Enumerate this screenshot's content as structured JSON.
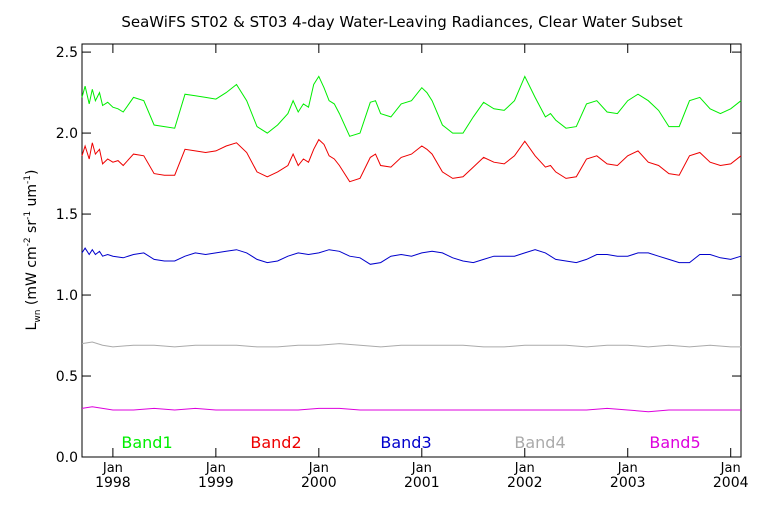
{
  "chart_data": {
    "type": "line",
    "title": "SeaWiFS ST02 & ST03 4-day Water-Leaving Radiances, Clear Water Subset",
    "ylabel_main": "L",
    "ylabel_sub": "wn",
    "ylabel_rest": " (mW cm",
    "ylabel_sup1": "-2",
    "ylabel_mid": " sr",
    "ylabel_sup2": "-1",
    "ylabel_mid2": " um",
    "ylabel_sup3": "-1",
    "ylabel_end": ")",
    "xlim": [
      1997.7,
      2004.1
    ],
    "ylim": [
      0.0,
      2.55
    ],
    "yticks": [
      {
        "value": 0.0,
        "label": "0.0"
      },
      {
        "value": 0.5,
        "label": "0.5"
      },
      {
        "value": 1.0,
        "label": "1.0"
      },
      {
        "value": 1.5,
        "label": "1.5"
      },
      {
        "value": 2.0,
        "label": "2.0"
      },
      {
        "value": 2.5,
        "label": "2.5"
      }
    ],
    "xticks": [
      {
        "value": 1998.0,
        "month": "Jan",
        "year": "1998"
      },
      {
        "value": 1999.0,
        "month": "Jan",
        "year": "1999"
      },
      {
        "value": 2000.0,
        "month": "Jan",
        "year": "2000"
      },
      {
        "value": 2001.0,
        "month": "Jan",
        "year": "2001"
      },
      {
        "value": 2002.0,
        "month": "Jan",
        "year": "2002"
      },
      {
        "value": 2003.0,
        "month": "Jan",
        "year": "2003"
      },
      {
        "value": 2004.0,
        "month": "Jan",
        "year": "2004"
      }
    ],
    "series": [
      {
        "name": "Band1",
        "color": "#00ee00",
        "x": [
          1997.7,
          1997.73,
          1997.77,
          1997.8,
          1997.83,
          1997.87,
          1997.9,
          1997.95,
          1998.0,
          1998.05,
          1998.1,
          1998.2,
          1998.3,
          1998.4,
          1998.5,
          1998.6,
          1998.7,
          1998.8,
          1998.9,
          1999.0,
          1999.1,
          1999.2,
          1999.3,
          1999.4,
          1999.5,
          1999.6,
          1999.7,
          1999.75,
          1999.8,
          1999.85,
          1999.9,
          1999.95,
          2000.0,
          2000.05,
          2000.1,
          2000.15,
          2000.2,
          2000.3,
          2000.4,
          2000.5,
          2000.55,
          2000.6,
          2000.7,
          2000.8,
          2000.9,
          2001.0,
          2001.05,
          2001.1,
          2001.2,
          2001.3,
          2001.4,
          2001.5,
          2001.6,
          2001.7,
          2001.8,
          2001.9,
          2002.0,
          2002.1,
          2002.2,
          2002.25,
          2002.3,
          2002.4,
          2002.5,
          2002.6,
          2002.7,
          2002.8,
          2002.9,
          2003.0,
          2003.1,
          2003.2,
          2003.3,
          2003.4,
          2003.5,
          2003.6,
          2003.7,
          2003.8,
          2003.9,
          2004.0,
          2004.1
        ],
        "y": [
          2.22,
          2.29,
          2.18,
          2.27,
          2.2,
          2.25,
          2.17,
          2.19,
          2.16,
          2.15,
          2.13,
          2.22,
          2.2,
          2.05,
          2.04,
          2.03,
          2.24,
          2.23,
          2.22,
          2.21,
          2.25,
          2.3,
          2.2,
          2.04,
          2.0,
          2.05,
          2.12,
          2.2,
          2.13,
          2.18,
          2.16,
          2.3,
          2.35,
          2.28,
          2.2,
          2.18,
          2.12,
          1.98,
          2.0,
          2.19,
          2.2,
          2.12,
          2.1,
          2.18,
          2.2,
          2.28,
          2.25,
          2.2,
          2.05,
          2.0,
          2.0,
          2.1,
          2.19,
          2.15,
          2.14,
          2.2,
          2.35,
          2.22,
          2.1,
          2.12,
          2.08,
          2.03,
          2.04,
          2.18,
          2.2,
          2.13,
          2.12,
          2.2,
          2.24,
          2.2,
          2.14,
          2.04,
          2.04,
          2.2,
          2.22,
          2.15,
          2.12,
          2.15,
          2.2
        ]
      },
      {
        "name": "Band2",
        "color": "#ee0000",
        "x": [
          1997.7,
          1997.73,
          1997.77,
          1997.8,
          1997.83,
          1997.87,
          1997.9,
          1997.95,
          1998.0,
          1998.05,
          1998.1,
          1998.2,
          1998.3,
          1998.4,
          1998.5,
          1998.6,
          1998.7,
          1998.8,
          1998.9,
          1999.0,
          1999.1,
          1999.2,
          1999.3,
          1999.4,
          1999.5,
          1999.6,
          1999.7,
          1999.75,
          1999.8,
          1999.85,
          1999.9,
          1999.95,
          2000.0,
          2000.05,
          2000.1,
          2000.15,
          2000.2,
          2000.3,
          2000.4,
          2000.5,
          2000.55,
          2000.6,
          2000.7,
          2000.8,
          2000.9,
          2001.0,
          2001.05,
          2001.1,
          2001.2,
          2001.3,
          2001.4,
          2001.5,
          2001.6,
          2001.7,
          2001.8,
          2001.9,
          2002.0,
          2002.1,
          2002.2,
          2002.25,
          2002.3,
          2002.4,
          2002.5,
          2002.6,
          2002.7,
          2002.8,
          2002.9,
          2003.0,
          2003.1,
          2003.2,
          2003.3,
          2003.4,
          2003.5,
          2003.6,
          2003.7,
          2003.8,
          2003.9,
          2004.0,
          2004.1
        ],
        "y": [
          1.86,
          1.92,
          1.84,
          1.94,
          1.87,
          1.9,
          1.81,
          1.84,
          1.82,
          1.83,
          1.8,
          1.87,
          1.86,
          1.75,
          1.74,
          1.74,
          1.9,
          1.89,
          1.88,
          1.89,
          1.92,
          1.94,
          1.88,
          1.76,
          1.73,
          1.76,
          1.8,
          1.87,
          1.8,
          1.84,
          1.82,
          1.9,
          1.96,
          1.93,
          1.86,
          1.84,
          1.8,
          1.7,
          1.72,
          1.85,
          1.87,
          1.8,
          1.79,
          1.85,
          1.87,
          1.92,
          1.9,
          1.87,
          1.76,
          1.72,
          1.73,
          1.79,
          1.85,
          1.82,
          1.81,
          1.86,
          1.95,
          1.86,
          1.79,
          1.8,
          1.76,
          1.72,
          1.73,
          1.84,
          1.86,
          1.81,
          1.8,
          1.86,
          1.89,
          1.82,
          1.8,
          1.75,
          1.74,
          1.86,
          1.88,
          1.82,
          1.8,
          1.81,
          1.86
        ]
      },
      {
        "name": "Band3",
        "color": "#0000cc",
        "x": [
          1997.7,
          1997.73,
          1997.77,
          1997.8,
          1997.83,
          1997.87,
          1997.9,
          1997.95,
          1998.0,
          1998.1,
          1998.2,
          1998.3,
          1998.4,
          1998.5,
          1998.6,
          1998.7,
          1998.8,
          1998.9,
          1999.0,
          1999.1,
          1999.2,
          1999.3,
          1999.4,
          1999.5,
          1999.6,
          1999.7,
          1999.8,
          1999.9,
          2000.0,
          2000.1,
          2000.2,
          2000.3,
          2000.4,
          2000.5,
          2000.6,
          2000.7,
          2000.8,
          2000.9,
          2001.0,
          2001.1,
          2001.2,
          2001.3,
          2001.4,
          2001.5,
          2001.6,
          2001.7,
          2001.8,
          2001.9,
          2002.0,
          2002.1,
          2002.2,
          2002.3,
          2002.4,
          2002.5,
          2002.6,
          2002.7,
          2002.8,
          2002.9,
          2003.0,
          2003.1,
          2003.2,
          2003.3,
          2003.4,
          2003.5,
          2003.6,
          2003.7,
          2003.8,
          2003.9,
          2004.0,
          2004.1
        ],
        "y": [
          1.26,
          1.29,
          1.25,
          1.28,
          1.25,
          1.27,
          1.24,
          1.25,
          1.24,
          1.23,
          1.25,
          1.26,
          1.22,
          1.21,
          1.21,
          1.24,
          1.26,
          1.25,
          1.26,
          1.27,
          1.28,
          1.26,
          1.22,
          1.2,
          1.21,
          1.24,
          1.26,
          1.25,
          1.26,
          1.28,
          1.27,
          1.24,
          1.23,
          1.19,
          1.2,
          1.24,
          1.25,
          1.24,
          1.26,
          1.27,
          1.26,
          1.23,
          1.21,
          1.2,
          1.22,
          1.24,
          1.24,
          1.24,
          1.26,
          1.28,
          1.26,
          1.22,
          1.21,
          1.2,
          1.22,
          1.25,
          1.25,
          1.24,
          1.24,
          1.26,
          1.26,
          1.24,
          1.22,
          1.2,
          1.2,
          1.25,
          1.25,
          1.23,
          1.22,
          1.24
        ]
      },
      {
        "name": "Band4",
        "color": "#aaaaaa",
        "x": [
          1997.7,
          1997.8,
          1997.9,
          1998.0,
          1998.2,
          1998.4,
          1998.6,
          1998.8,
          1999.0,
          1999.2,
          1999.4,
          1999.6,
          1999.8,
          2000.0,
          2000.2,
          2000.4,
          2000.6,
          2000.8,
          2001.0,
          2001.2,
          2001.4,
          2001.6,
          2001.8,
          2002.0,
          2002.2,
          2002.4,
          2002.6,
          2002.8,
          2003.0,
          2003.2,
          2003.4,
          2003.6,
          2003.8,
          2004.0,
          2004.1
        ],
        "y": [
          0.7,
          0.71,
          0.69,
          0.68,
          0.69,
          0.69,
          0.68,
          0.69,
          0.69,
          0.69,
          0.68,
          0.68,
          0.69,
          0.69,
          0.7,
          0.69,
          0.68,
          0.69,
          0.69,
          0.69,
          0.69,
          0.68,
          0.68,
          0.69,
          0.69,
          0.69,
          0.68,
          0.69,
          0.69,
          0.68,
          0.69,
          0.68,
          0.69,
          0.68,
          0.68
        ]
      },
      {
        "name": "Band5",
        "color": "#dd00dd",
        "x": [
          1997.7,
          1997.8,
          1997.9,
          1998.0,
          1998.2,
          1998.4,
          1998.6,
          1998.8,
          1999.0,
          1999.2,
          1999.4,
          1999.6,
          1999.8,
          2000.0,
          2000.2,
          2000.4,
          2000.6,
          2000.8,
          2001.0,
          2001.2,
          2001.4,
          2001.6,
          2001.8,
          2002.0,
          2002.2,
          2002.4,
          2002.6,
          2002.8,
          2003.0,
          2003.2,
          2003.4,
          2003.6,
          2003.8,
          2004.0,
          2004.1
        ],
        "y": [
          0.3,
          0.31,
          0.3,
          0.29,
          0.29,
          0.3,
          0.29,
          0.3,
          0.29,
          0.29,
          0.29,
          0.29,
          0.29,
          0.3,
          0.3,
          0.29,
          0.29,
          0.29,
          0.29,
          0.29,
          0.29,
          0.29,
          0.29,
          0.29,
          0.29,
          0.29,
          0.29,
          0.3,
          0.29,
          0.28,
          0.29,
          0.29,
          0.29,
          0.29,
          0.29
        ]
      }
    ],
    "legend_placement": "bottom-inside",
    "grid": false
  }
}
